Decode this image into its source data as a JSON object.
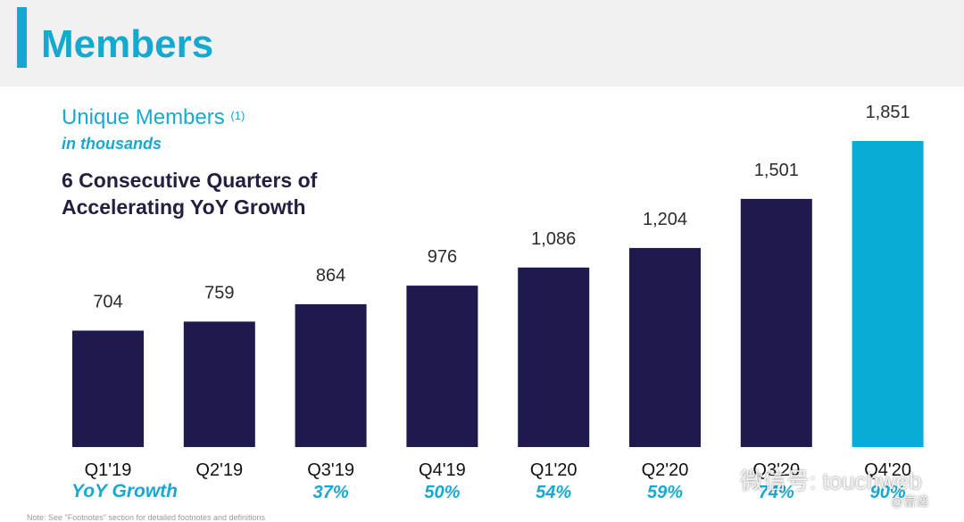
{
  "header": {
    "title": "Members",
    "accent_color": "#14a9cf"
  },
  "subtitle": {
    "text": "Unique Members",
    "footnote_ref": "(1)",
    "units": "in thousands"
  },
  "headline": "6 Consecutive Quarters of Accelerating YoY Growth",
  "growth_row_title": "YoY Growth",
  "footnote": "Note: See \"Footnotes\" section for detailed footnotes and definitions",
  "watermark": {
    "text": "微信号: touchweb",
    "text2": "@雷递"
  },
  "chart_data": {
    "type": "bar",
    "categories": [
      "Q1'19",
      "Q2'19",
      "Q3'19",
      "Q4'19",
      "Q1'20",
      "Q2'20",
      "Q3'20",
      "Q4'20"
    ],
    "values": [
      704,
      759,
      864,
      976,
      1086,
      1204,
      1501,
      1851
    ],
    "value_labels": [
      "704",
      "759",
      "864",
      "976",
      "1,086",
      "1,204",
      "1,501",
      "1,851"
    ],
    "yoy_growth": [
      "",
      "",
      "37%",
      "50%",
      "54%",
      "59%",
      "74%",
      "90%"
    ],
    "title": "Unique Members",
    "ylabel": "in thousands",
    "ylim": [
      0,
      1851
    ],
    "grid": false,
    "legend": "none",
    "bar_color": "#1e1a4d",
    "highlight_color": "#08acd4",
    "highlight_index": 7
  }
}
